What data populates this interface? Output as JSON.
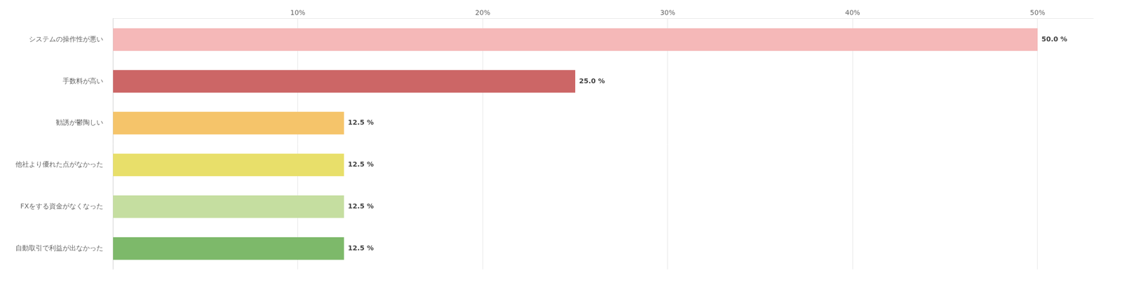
{
  "chart_data": {
    "type": "bar",
    "orientation": "horizontal",
    "categories": [
      "自動取引で利益が出なかった",
      "FXをする資金がなくなった",
      "他社より優れた点がなかった",
      "勧誘が鬱陶しい",
      "手数料が高い",
      "システムの操作性が悪い"
    ],
    "values": [
      12.5,
      12.5,
      12.5,
      12.5,
      25.0,
      50.0
    ],
    "value_labels": [
      "12.5 %",
      "12.5 %",
      "12.5 %",
      "12.5 %",
      "25.0 %",
      "50.0 %"
    ],
    "data_labels": true,
    "colors": [
      "#7db96a",
      "#c5dea0",
      "#e8df6a",
      "#f5c46a",
      "#cc6666",
      "#f5b8b8"
    ],
    "xlim": [
      0,
      53
    ],
    "xticks": [
      {
        "value": 0,
        "label": ""
      },
      {
        "value": 10,
        "label": "10%"
      },
      {
        "value": 20,
        "label": "20%"
      },
      {
        "value": 30,
        "label": "30%"
      },
      {
        "value": 40,
        "label": "40%"
      },
      {
        "value": 50,
        "label": "50%"
      }
    ],
    "grid": true
  }
}
